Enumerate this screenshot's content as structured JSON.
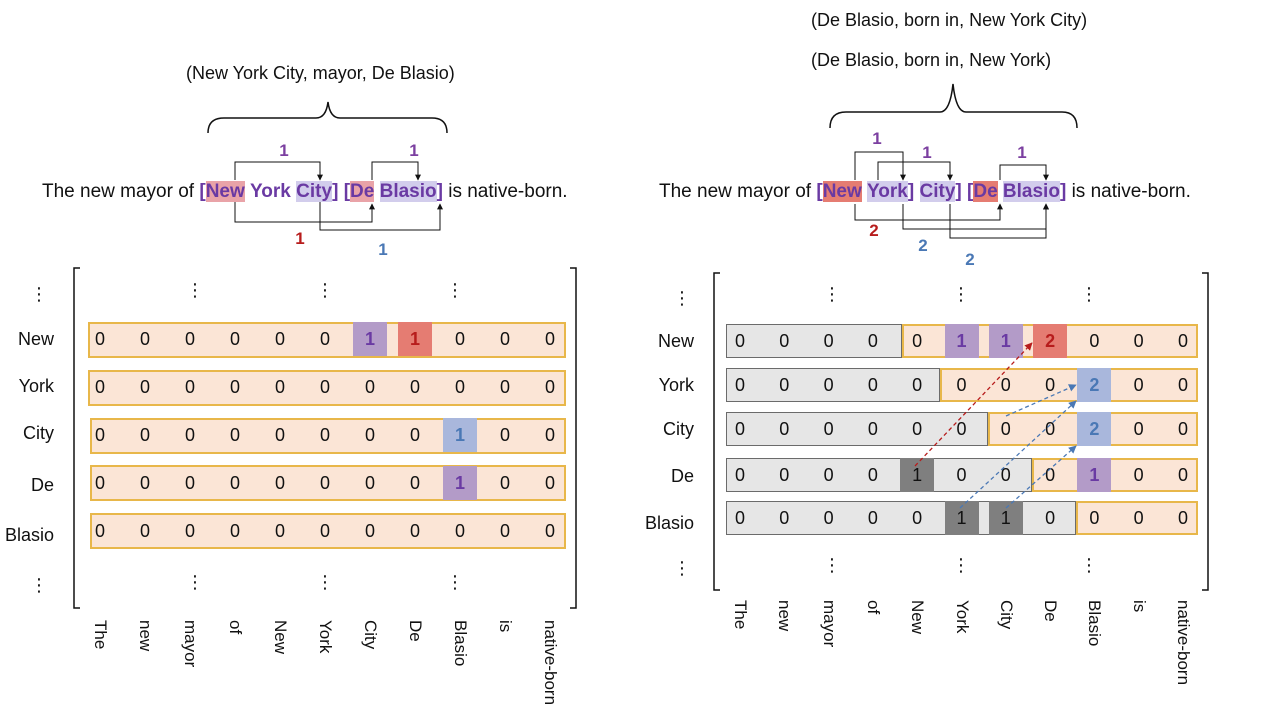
{
  "left": {
    "triple": "(New York City, mayor, De Blasio)",
    "sentence_prefix": "The new mayor of",
    "sentence_suffix": "is native-born.",
    "tokens": [
      "New",
      "York",
      "City",
      "De",
      "Blasio"
    ],
    "brackets": [
      "[",
      "]",
      "[",
      "]"
    ],
    "arc_labels": {
      "top_left": "1",
      "top_right": "1",
      "bottom_red": "1",
      "bottom_blue": "1"
    },
    "row_labels": [
      "New",
      "York",
      "City",
      "De",
      "Blasio"
    ],
    "col_labels": [
      "The",
      "new",
      "mayor",
      "of",
      "New",
      "York",
      "City",
      "De",
      "Blasio",
      "is",
      "native-born"
    ],
    "matrix": [
      [
        "0",
        "0",
        "0",
        "0",
        "0",
        "0",
        "1",
        "1",
        "0",
        "0",
        "0"
      ],
      [
        "0",
        "0",
        "0",
        "0",
        "0",
        "0",
        "0",
        "0",
        "0",
        "0",
        "0"
      ],
      [
        "0",
        "0",
        "0",
        "0",
        "0",
        "0",
        "0",
        "0",
        "1",
        "0",
        "0"
      ],
      [
        "0",
        "0",
        "0",
        "0",
        "0",
        "0",
        "0",
        "0",
        "1",
        "0",
        "0"
      ],
      [
        "0",
        "0",
        "0",
        "0",
        "0",
        "0",
        "0",
        "0",
        "0",
        "0",
        "0"
      ]
    ],
    "ellipsis": "⋮"
  },
  "right": {
    "triple1": "(De Blasio, born in, New York City)",
    "triple2": "(De Blasio, born in, New York)",
    "sentence_prefix": "The new mayor of",
    "sentence_suffix": "is native-born.",
    "tokens": [
      "New",
      "York",
      "City",
      "De",
      "Blasio"
    ],
    "arc_labels": {
      "a": "1",
      "b": "1",
      "c": "1",
      "red": "2",
      "blue1": "2",
      "blue2": "2"
    },
    "row_labels": [
      "New",
      "York",
      "City",
      "De",
      "Blasio"
    ],
    "col_labels": [
      "The",
      "new",
      "mayor",
      "of",
      "New",
      "York",
      "City",
      "De",
      "Blasio",
      "is",
      "native-born"
    ],
    "matrix": [
      [
        "0",
        "0",
        "0",
        "0",
        "0",
        "1",
        "1",
        "2",
        "0",
        "0",
        "0"
      ],
      [
        "0",
        "0",
        "0",
        "0",
        "0",
        "0",
        "0",
        "0",
        "2",
        "0",
        "0"
      ],
      [
        "0",
        "0",
        "0",
        "0",
        "0",
        "0",
        "0",
        "0",
        "2",
        "0",
        "0"
      ],
      [
        "0",
        "0",
        "0",
        "0",
        "1",
        "0",
        "0",
        "0",
        "1",
        "0",
        "0"
      ],
      [
        "0",
        "0",
        "0",
        "0",
        "0",
        "1",
        "1",
        "0",
        "0",
        "0",
        "0"
      ]
    ],
    "ellipsis": "⋮"
  },
  "colors": {
    "purple": "#7b3fa0",
    "red": "#b71c1c",
    "blue": "#4a78b5",
    "peach": "#fbe5d6",
    "orange_border": "#e8b74a",
    "gray": "#e6e6e6",
    "dark_gray": "#7f7f7f",
    "purple_fill": "#b39bc8",
    "red_fill": "#e57c72",
    "blue_fill": "#a9b7dc",
    "pink_fill": "#e9a3a8",
    "lavender_fill": "#d2cdec"
  }
}
